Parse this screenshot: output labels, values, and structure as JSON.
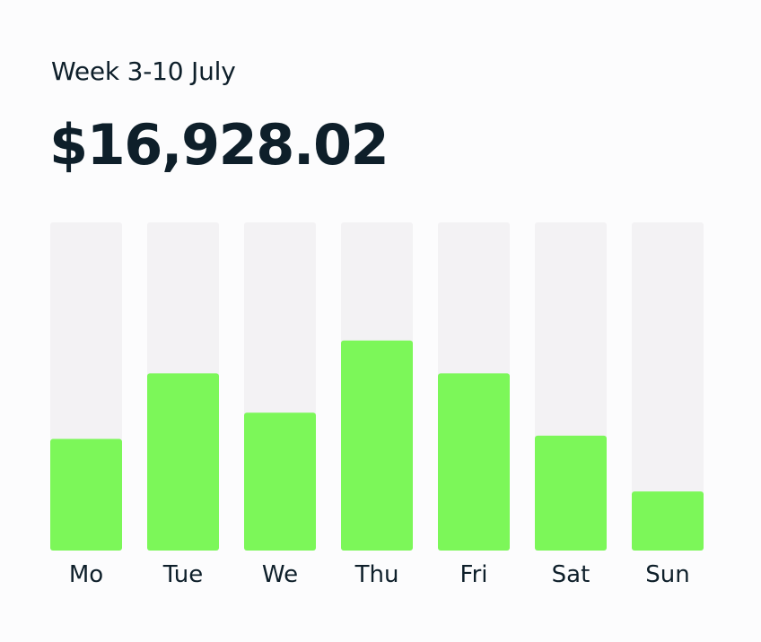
{
  "header": {
    "period_label": "Week 3-10 July",
    "total_amount": "$16,928.02"
  },
  "colors": {
    "bar_fill": "#7cf759",
    "bar_track": "#f3f2f4",
    "text": "#0e1f2a",
    "background": "#fcfcfd"
  },
  "chart_data": {
    "type": "bar",
    "categories": [
      "Mo",
      "Tue",
      "We",
      "Thu",
      "Fri",
      "Sat",
      "Sun"
    ],
    "values": [
      34,
      54,
      42,
      64,
      54,
      35,
      18
    ],
    "ylim": [
      0,
      100
    ],
    "grid": false,
    "legend": "none"
  }
}
